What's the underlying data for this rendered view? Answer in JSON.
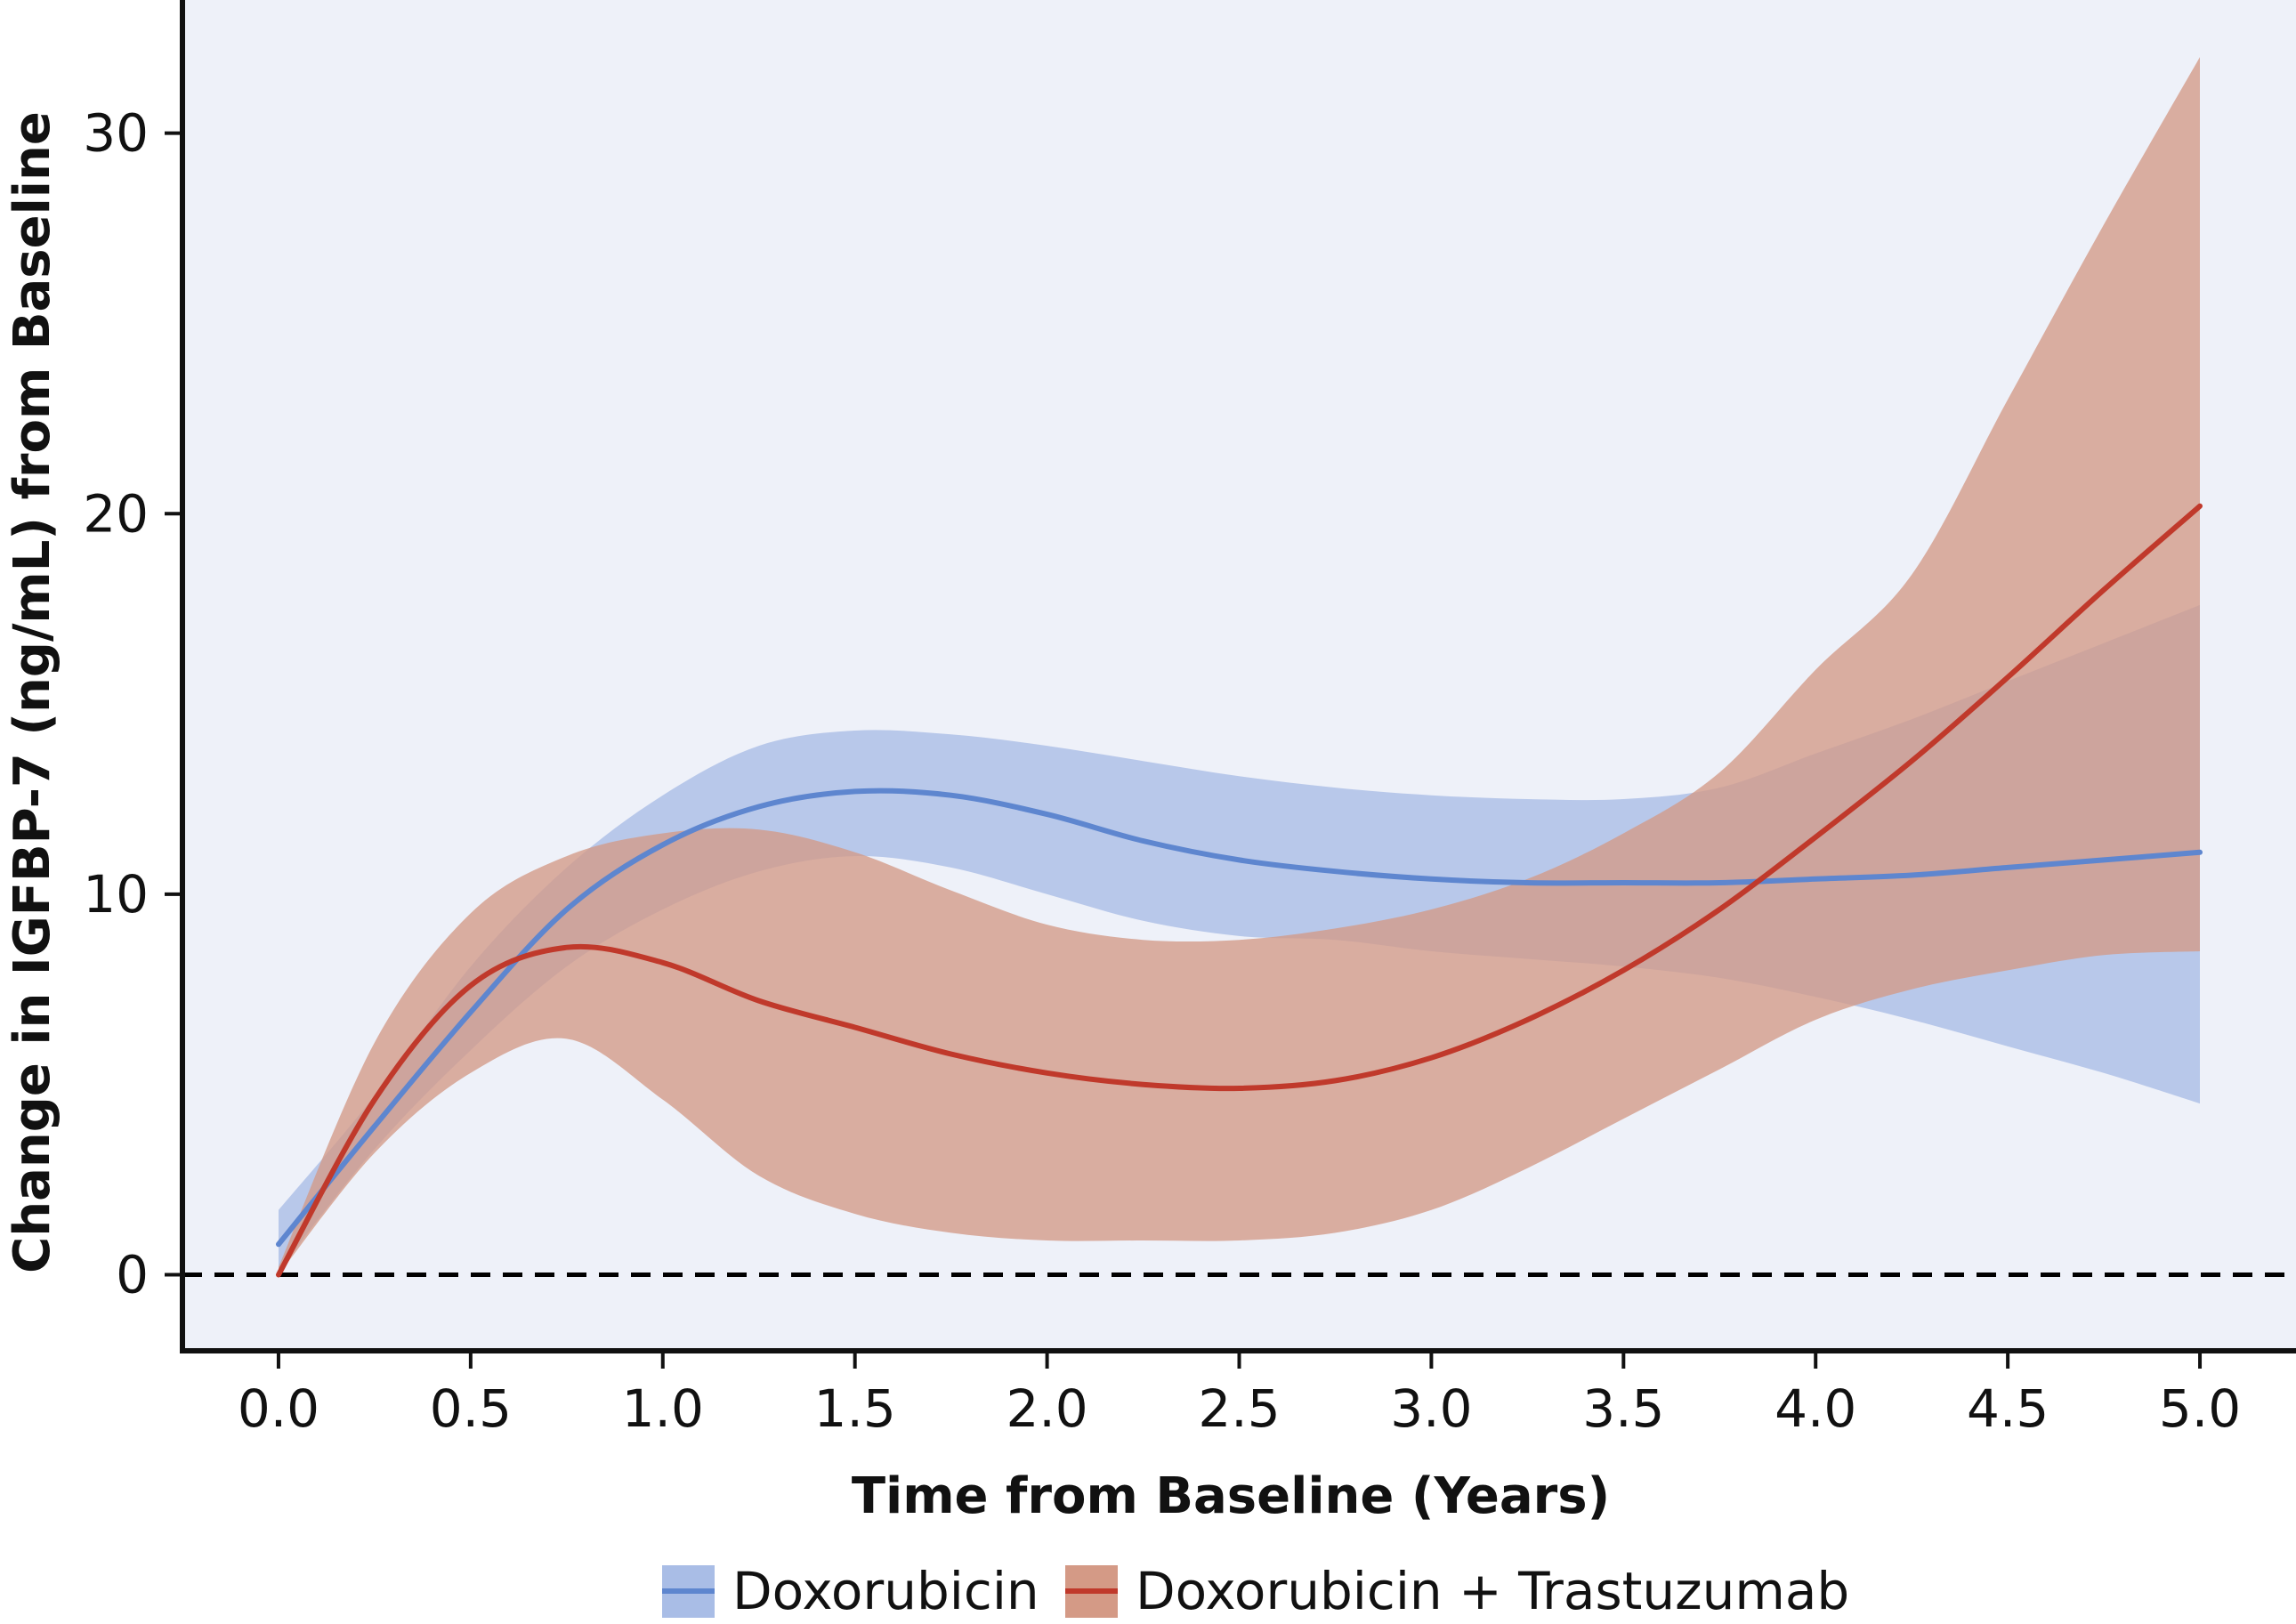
{
  "chart_data": {
    "type": "line",
    "title": "",
    "xlabel": "Time from Baseline (Years)",
    "ylabel": "Change in IGFBP-7 (ng/mL) from Baseline",
    "xlim": [
      -0.25,
      5.25
    ],
    "ylim": [
      -2,
      33.5
    ],
    "x_ticks": [
      0.0,
      0.5,
      1.0,
      1.5,
      2.0,
      2.5,
      3.0,
      3.5,
      4.0,
      4.5,
      5.0
    ],
    "x_tick_labels": [
      "0.0",
      "0.5",
      "1.0",
      "1.5",
      "2.0",
      "2.5",
      "3.0",
      "3.5",
      "4.0",
      "4.5",
      "5.0"
    ],
    "y_ticks": [
      0,
      10,
      20,
      30
    ],
    "y_tick_labels": [
      "0",
      "10",
      "20",
      "30"
    ],
    "reference_line": {
      "y": 0,
      "style": "dashed"
    },
    "legend_position": "bottom",
    "grid": false,
    "colors": {
      "background": "#eef1f9",
      "doxorubicin_line": "#5e86cf",
      "doxorubicin_band": "#a9bde6",
      "combo_line": "#c0392b",
      "combo_band": "#d49a86"
    },
    "x": [
      0.0,
      0.25,
      0.5,
      0.75,
      1.0,
      1.25,
      1.5,
      1.75,
      2.0,
      2.25,
      2.5,
      2.75,
      3.0,
      3.25,
      3.5,
      3.75,
      4.0,
      4.25,
      4.5,
      4.75,
      5.0
    ],
    "series": [
      {
        "name": "Doxorubicin",
        "values": [
          0.8,
          3.9,
          6.9,
          9.6,
          11.3,
          12.3,
          12.7,
          12.6,
          12.1,
          11.4,
          10.9,
          10.6,
          10.4,
          10.3,
          10.3,
          10.3,
          10.4,
          10.5,
          10.7,
          10.9,
          11.1
        ],
        "lower": [
          0.1,
          3.3,
          5.9,
          8.1,
          9.6,
          10.6,
          11.0,
          10.7,
          10.0,
          9.3,
          8.9,
          8.8,
          8.5,
          8.3,
          8.1,
          7.8,
          7.3,
          6.7,
          6.0,
          5.3,
          4.5
        ],
        "upper": [
          1.7,
          4.7,
          8.1,
          10.7,
          12.6,
          13.9,
          14.3,
          14.2,
          13.9,
          13.5,
          13.1,
          12.8,
          12.6,
          12.5,
          12.5,
          12.8,
          13.7,
          14.6,
          15.6,
          16.6,
          17.6
        ]
      },
      {
        "name": "Doxorubicin + Trastuzumab",
        "values": [
          0.0,
          4.6,
          7.6,
          8.6,
          8.2,
          7.2,
          6.5,
          5.8,
          5.3,
          5.0,
          4.9,
          5.1,
          5.7,
          6.7,
          8.0,
          9.6,
          11.5,
          13.5,
          15.7,
          18.0,
          20.2
        ],
        "lower": [
          0.0,
          3.2,
          5.3,
          6.2,
          4.6,
          2.6,
          1.6,
          1.1,
          0.9,
          0.9,
          0.9,
          1.1,
          1.7,
          2.8,
          4.1,
          5.4,
          6.7,
          7.5,
          8.0,
          8.4,
          8.5
        ],
        "upper": [
          0.2,
          6.1,
          9.5,
          11.0,
          11.6,
          11.7,
          11.1,
          10.1,
          9.2,
          8.8,
          8.8,
          9.1,
          9.6,
          10.4,
          11.6,
          13.2,
          15.9,
          18.4,
          23.0,
          27.6,
          32.0
        ]
      }
    ]
  }
}
